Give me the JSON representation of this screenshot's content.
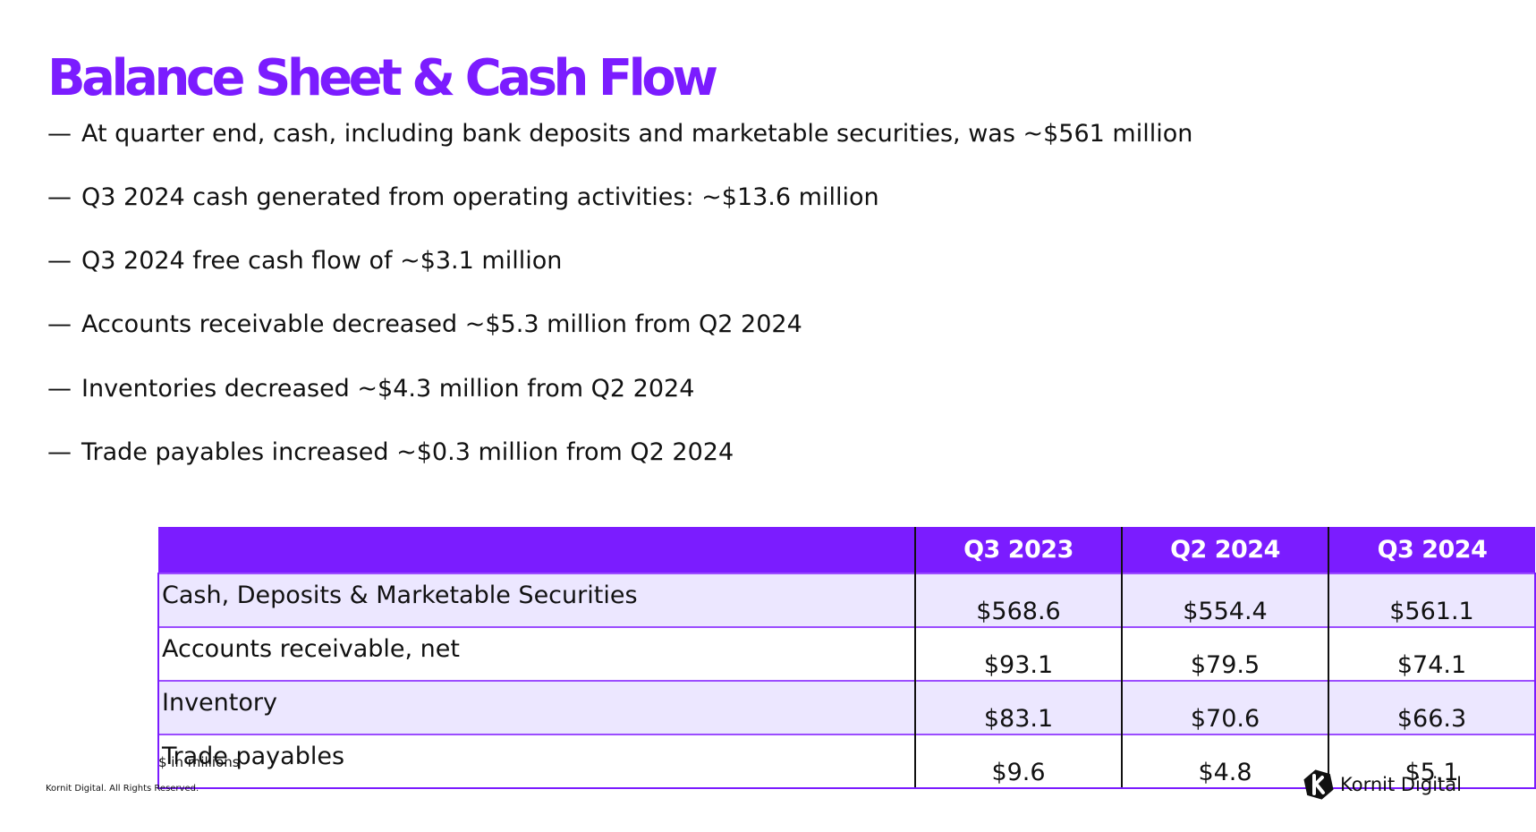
{
  "slide": {
    "title": "Balance Sheet & Cash Flow",
    "bullets": [
      "At quarter end, cash, including bank deposits and marketable securities, was ~$561 million",
      "Q3 2024 cash generated from operating activities: ~$13.6 million",
      "Q3 2024 free cash flow of ~$3.1 million",
      "Accounts receivable decreased ~$5.3 million from Q2 2024",
      "Inventories decreased ~$4.3 million from Q2 2024",
      "Trade payables increased ~$0.3 million from Q2 2024"
    ],
    "bullet_marker": "—"
  },
  "table": {
    "columns": [
      "",
      "Q3 2023",
      "Q2 2024",
      "Q3 2024"
    ],
    "rows": [
      [
        "Cash, Deposits & Marketable Securities",
        "$568.6",
        "$554.4",
        "$561.1"
      ],
      [
        "Accounts receivable, net",
        "$93.1",
        "$79.5",
        "$74.1"
      ],
      [
        "Inventory",
        "$83.1",
        "$70.6",
        "$66.3"
      ],
      [
        "Trade payables",
        "$9.6",
        "$4.8",
        "$5.1"
      ]
    ],
    "footnote": "$ in millions"
  },
  "footer": {
    "copyright": "Kornit Digital. All Rights Reserved.",
    "logo_text": "Kornit Digital",
    "logo_icon": "kornit-k-logo-icon"
  },
  "colors": {
    "accent": "#7b1cff",
    "row_shade": "#ece7ff",
    "text": "#111111"
  }
}
